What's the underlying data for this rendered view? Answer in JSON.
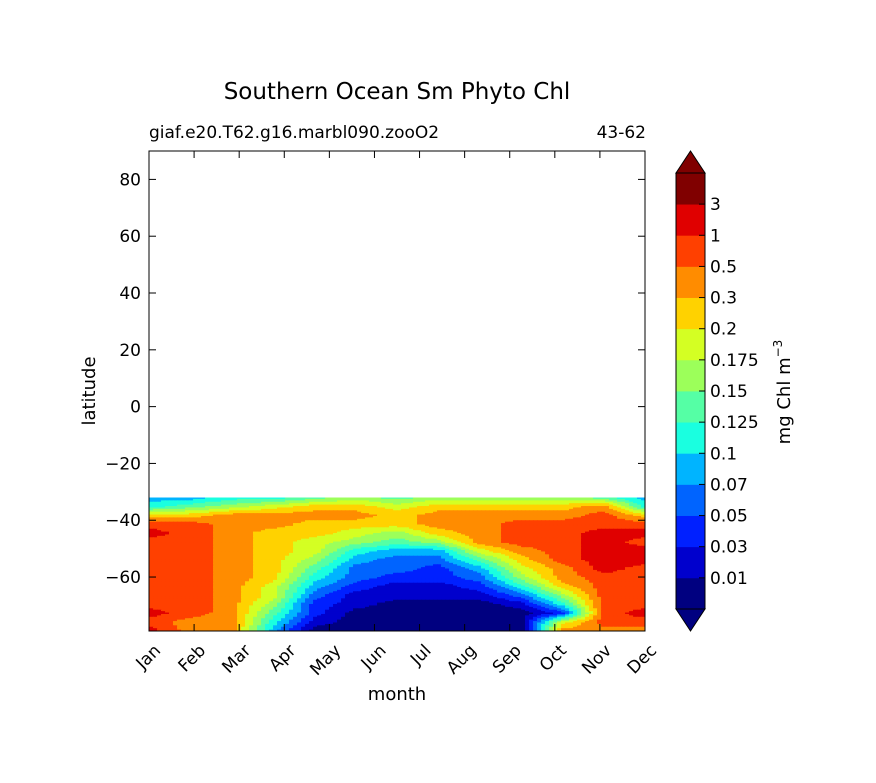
{
  "chart_data": {
    "type": "heatmap",
    "plot_kind": "filled-contour",
    "title": "Southern Ocean Sm Phyto Chl",
    "subtitle_left": "giaf.e20.T62.g16.marbl090.zooO2",
    "subtitle_right": "43-62",
    "xlabel": "month",
    "ylabel": "latitude",
    "x_categories": [
      "Jan",
      "Feb",
      "Mar",
      "Apr",
      "May",
      "Jun",
      "Jul",
      "Aug",
      "Sep",
      "Oct",
      "Nov",
      "Dec"
    ],
    "xlim": [
      1,
      12
    ],
    "ylim": [
      -79,
      90
    ],
    "yticks": [
      -60,
      -40,
      -20,
      0,
      20,
      40,
      60,
      80
    ],
    "ytick_labels": [
      "−60",
      "−40",
      "−20",
      "0",
      "20",
      "40",
      "60",
      "80"
    ],
    "data_lat_range": [
      -79,
      -32
    ],
    "colorbar": {
      "label": "mg Chl m",
      "label_exponent": "−3",
      "extend": "both",
      "levels": [
        0.01,
        0.03,
        0.05,
        0.07,
        0.1,
        0.125,
        0.15,
        0.175,
        0.2,
        0.3,
        0.5,
        1,
        3
      ],
      "level_labels": [
        "0.01",
        "0.03",
        "0.05",
        "0.07",
        "0.1",
        "0.125",
        "0.15",
        "0.175",
        "0.2",
        "0.3",
        "0.5",
        "1",
        "3"
      ],
      "colors": [
        "#000080",
        "#0000cd",
        "#0020ff",
        "#0064ff",
        "#00b4ff",
        "#1affe0",
        "#55ffa5",
        "#9cff5a",
        "#d4ff23",
        "#ffd200",
        "#ff8c00",
        "#ff4000",
        "#e00000",
        "#800000"
      ]
    },
    "time_labels": [
      "Jan",
      "Feb",
      "Mar",
      "Apr",
      "May",
      "Jun",
      "Jul",
      "Aug",
      "Sep",
      "Oct",
      "Nov",
      "Dec",
      "Jan"
    ],
    "lat_labels": [
      -78,
      -75,
      -72,
      -69,
      -66,
      -63,
      -60,
      -57,
      -54,
      -51,
      -48,
      -45,
      -42,
      -39,
      -36,
      -33
    ],
    "grid_classes": [
      [
        12,
        10,
        10,
        4,
        0,
        0,
        0,
        0,
        0,
        0,
        10,
        10,
        10
      ],
      [
        11,
        10,
        10,
        5,
        1,
        0,
        0,
        0,
        0,
        0,
        8,
        11,
        11
      ],
      [
        12,
        11,
        10,
        6,
        2,
        0,
        0,
        0,
        0,
        0,
        2,
        11,
        12
      ],
      [
        11,
        11,
        10,
        7,
        2,
        1,
        0,
        0,
        0,
        1,
        5,
        11,
        11
      ],
      [
        11,
        11,
        10,
        8,
        3,
        1,
        1,
        1,
        1,
        3,
        7,
        11,
        11
      ],
      [
        11,
        11,
        10,
        8,
        4,
        2,
        1,
        1,
        2,
        5,
        9,
        11,
        11
      ],
      [
        11,
        11,
        10,
        9,
        5,
        3,
        2,
        2,
        3,
        7,
        10,
        11,
        11
      ],
      [
        11,
        11,
        10,
        9,
        6,
        3,
        3,
        2,
        4,
        8,
        10,
        12,
        11
      ],
      [
        11,
        11,
        10,
        9,
        7,
        4,
        3,
        3,
        6,
        9,
        11,
        12,
        12
      ],
      [
        11,
        11,
        10,
        9,
        8,
        5,
        4,
        4,
        8,
        10,
        11,
        12,
        12
      ],
      [
        11,
        11,
        10,
        9,
        8,
        7,
        6,
        7,
        10,
        11,
        11,
        12,
        11
      ],
      [
        12,
        11,
        10,
        9,
        9,
        8,
        7,
        9,
        10,
        11,
        11,
        12,
        12
      ],
      [
        11,
        11,
        10,
        10,
        9,
        9,
        9,
        10,
        10,
        11,
        11,
        11,
        11
      ],
      [
        9,
        9,
        10,
        10,
        10,
        10,
        9,
        10,
        10,
        10,
        10,
        11,
        9
      ],
      [
        5,
        6,
        7,
        8,
        9,
        9,
        8,
        9,
        9,
        9,
        9,
        10,
        5
      ],
      [
        4,
        4,
        5,
        5,
        6,
        7,
        6,
        7,
        7,
        7,
        7,
        6,
        4
      ]
    ]
  }
}
